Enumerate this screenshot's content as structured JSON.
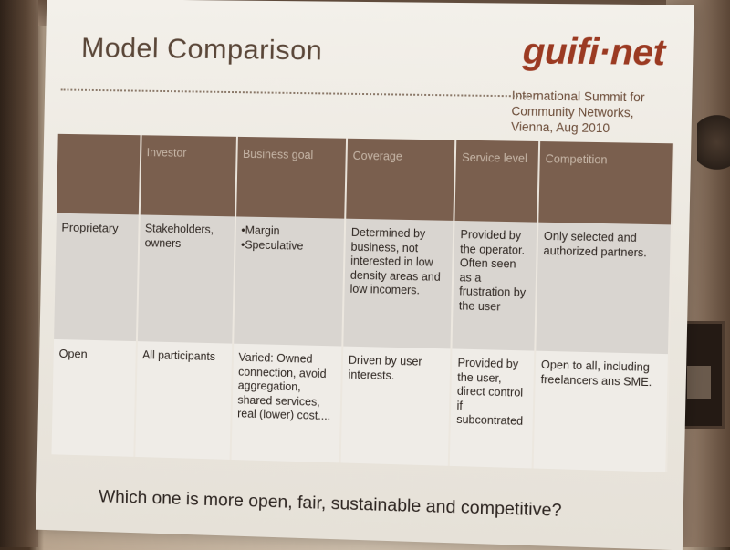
{
  "slide": {
    "title": "Model Comparison",
    "logo": "guifi·net",
    "summit_lines": [
      "International Summit for",
      "Community Networks,",
      "Vienna, Aug 2010"
    ],
    "columns": [
      "",
      "Investor",
      "Business goal",
      "Coverage",
      "Service level",
      "Competition"
    ],
    "rows": [
      {
        "label": "Proprietary",
        "investor": "Stakeholders, owners",
        "business_goal": [
          "•Margin",
          "•Speculative"
        ],
        "coverage": "Determined by business, not interested in low density areas and low incomers.",
        "service_level": "Provided by the operator. Often seen as a frustration by the user",
        "competition": "Only selected and authorized partners."
      },
      {
        "label": "Open",
        "investor": "All participants",
        "business_goal": [
          "Varied: Owned connection, avoid aggregation, shared services, real (lower) cost...."
        ],
        "coverage": "Driven by user interests.",
        "service_level": "Provided by the user, direct control if subcontrated",
        "competition": "Open to all, including freelancers ans SME."
      }
    ],
    "question": "Which one is more open, fair, sustainable and competitive?"
  },
  "colors": {
    "header_bg": "#7a5f4e",
    "logo": "#9b3a22",
    "title": "#5a4638"
  }
}
